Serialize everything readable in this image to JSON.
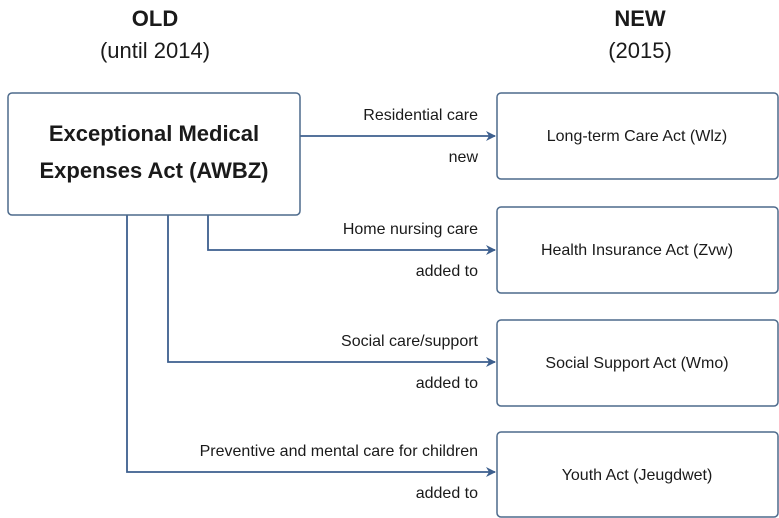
{
  "header": {
    "old": {
      "title": "OLD",
      "subtitle": "(until 2014)"
    },
    "new": {
      "title": "NEW",
      "subtitle": "(2015)"
    }
  },
  "source": {
    "lines": [
      "Exceptional Medical",
      "Expenses Act (AWBZ)"
    ]
  },
  "flows": [
    {
      "label": "Residential care",
      "relation": "new",
      "target": "Long-term Care Act (Wlz)"
    },
    {
      "label": "Home nursing care",
      "relation": "added to",
      "target": "Health Insurance Act (Zvw)"
    },
    {
      "label": "Social care/support",
      "relation": "added to",
      "target": "Social Support Act (Wmo)"
    },
    {
      "label": "Preventive and mental care for children",
      "relation": "added to",
      "target": "Youth Act (Jeugdwet)"
    }
  ]
}
